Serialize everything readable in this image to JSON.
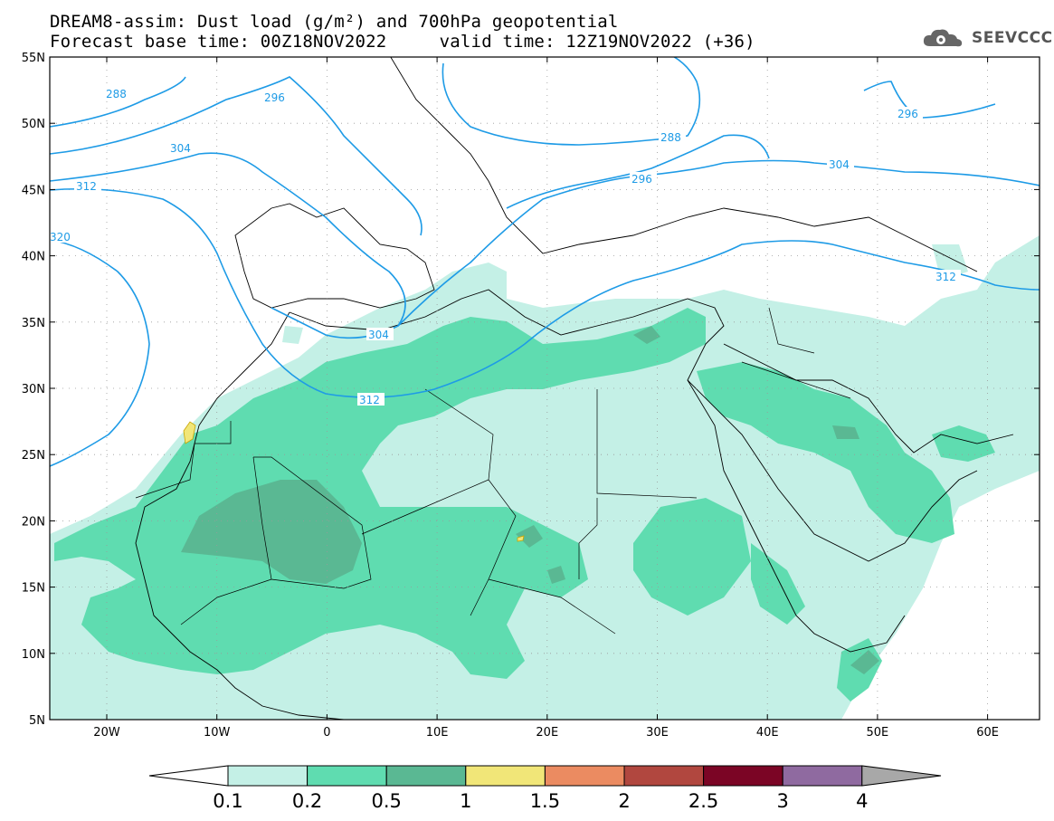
{
  "title": {
    "line1": "DREAM8-assim: Dust load (g/m²) and 700hPa geopotential",
    "line2": "Forecast base time: 00Z18NOV2022     valid time: 12Z19NOV2022 (+36)"
  },
  "logo": {
    "text": "SEEVCCC",
    "icon": "cloud-gear-icon"
  },
  "axes": {
    "lat_labels": [
      "55N",
      "50N",
      "45N",
      "40N",
      "35N",
      "30N",
      "25N",
      "20N",
      "15N",
      "10N",
      "5N"
    ],
    "lon_labels": [
      "20W",
      "10W",
      "0",
      "10E",
      "20E",
      "30E",
      "40E",
      "50E",
      "60E"
    ]
  },
  "contours": {
    "color": "#1e9be6",
    "labels": [
      "288",
      "296",
      "304",
      "312",
      "320",
      "304",
      "312",
      "288",
      "296",
      "304",
      "312",
      "296"
    ]
  },
  "colorbar": {
    "labels": [
      "0.1",
      "0.2",
      "0.5",
      "1",
      "1.5",
      "2",
      "2.5",
      "3",
      "4"
    ],
    "colors": [
      "#c4f0e6",
      "#5fdcb0",
      "#5ab893",
      "#f1e678",
      "#eb8b61",
      "#b1473f",
      "#7b0525",
      "#8f6aa0",
      "#a8a8a8"
    ]
  }
}
